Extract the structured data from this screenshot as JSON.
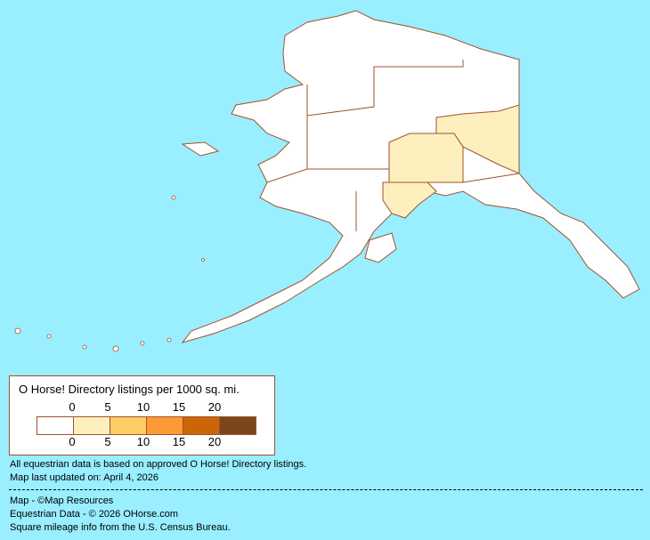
{
  "legend": {
    "title": "O Horse! Directory listings per 1000 sq. mi.",
    "top_ticks": [
      "0",
      "5",
      "10",
      "15",
      "20"
    ],
    "bottom_ticks": [
      "0",
      "5",
      "10",
      "15",
      "20"
    ],
    "colors": [
      "#ffffff",
      "#fdf0be",
      "#fdcd66",
      "#fd9a35",
      "#cc6505",
      "#7b461d"
    ]
  },
  "map": {
    "land_color": "#ffffff",
    "border_color": "#a0522d",
    "highlight_color": "#fdf0be",
    "water_color": "#99eeff"
  },
  "notes": {
    "line1": "All equestrian data is based on approved O Horse! Directory listings.",
    "line2": "Map last updated on: April 4, 2026"
  },
  "credits": {
    "map": "Map - ©Map Resources",
    "data": "Equestrian Data - © 2026 OHorse.com",
    "census": "Square mileage info from the U.S. Census Bureau."
  }
}
